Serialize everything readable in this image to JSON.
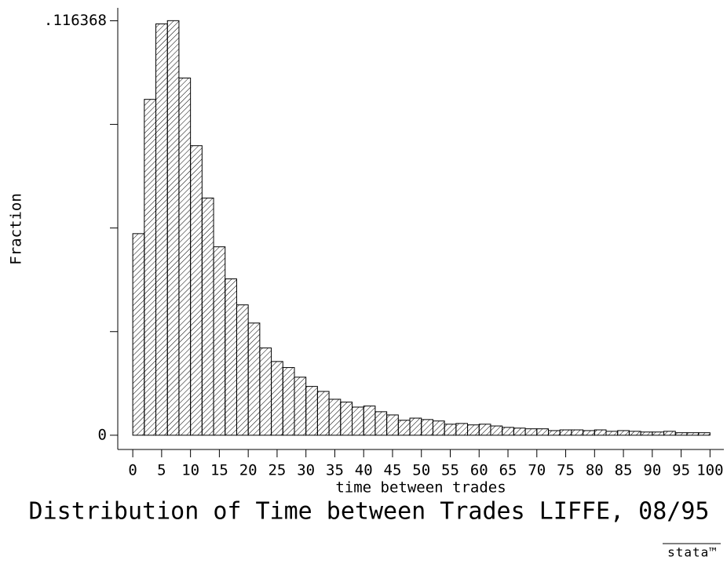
{
  "chart_data": {
    "type": "histogram",
    "title": "Distribution of Time between Trades LIFFE, 08/95",
    "x_label": "time between trades",
    "y_label": "Fraction",
    "logo": "stata™",
    "bins": [
      0,
      2,
      4,
      6,
      8,
      10,
      12,
      14,
      16,
      18,
      20,
      22,
      24,
      26,
      28,
      30,
      32,
      34,
      36,
      38,
      40,
      42,
      44,
      46,
      48,
      50,
      52,
      54,
      56,
      58,
      60,
      62,
      64,
      66,
      68,
      70,
      72,
      74,
      76,
      78,
      80,
      82,
      84,
      86,
      88,
      90,
      92,
      94,
      96,
      98,
      100
    ],
    "counts": [
      0.0566,
      0.0943,
      0.1155,
      0.1164,
      0.1003,
      0.0813,
      0.0666,
      0.0529,
      0.0439,
      0.0366,
      0.0315,
      0.0245,
      0.0207,
      0.019,
      0.0163,
      0.0137,
      0.0123,
      0.0101,
      0.0093,
      0.0079,
      0.0082,
      0.0066,
      0.0057,
      0.0042,
      0.0048,
      0.0044,
      0.004,
      0.0031,
      0.0033,
      0.0029,
      0.0031,
      0.0026,
      0.0022,
      0.002,
      0.0018,
      0.0018,
      0.0013,
      0.0015,
      0.0015,
      0.0013,
      0.0015,
      0.0011,
      0.0013,
      0.0011,
      0.0009,
      0.0009,
      0.0011,
      0.0007,
      0.0007,
      0.0007
    ],
    "color": "#000000",
    "hatch": true,
    "xlim": [
      -2.6,
      102.4
    ],
    "ylim": [
      -0.004,
      0.12
    ],
    "xticks": [
      0,
      5,
      10,
      15,
      20,
      25,
      30,
      35,
      40,
      45,
      50,
      55,
      60,
      65,
      70,
      75,
      80,
      85,
      90,
      95,
      100
    ],
    "yticks": [
      0,
      {
        "value": 0.116368,
        "label": ".116368"
      }
    ],
    "yminorticks": [
      0.029092,
      0.058184,
      0.087276
    ],
    "grid": false
  }
}
